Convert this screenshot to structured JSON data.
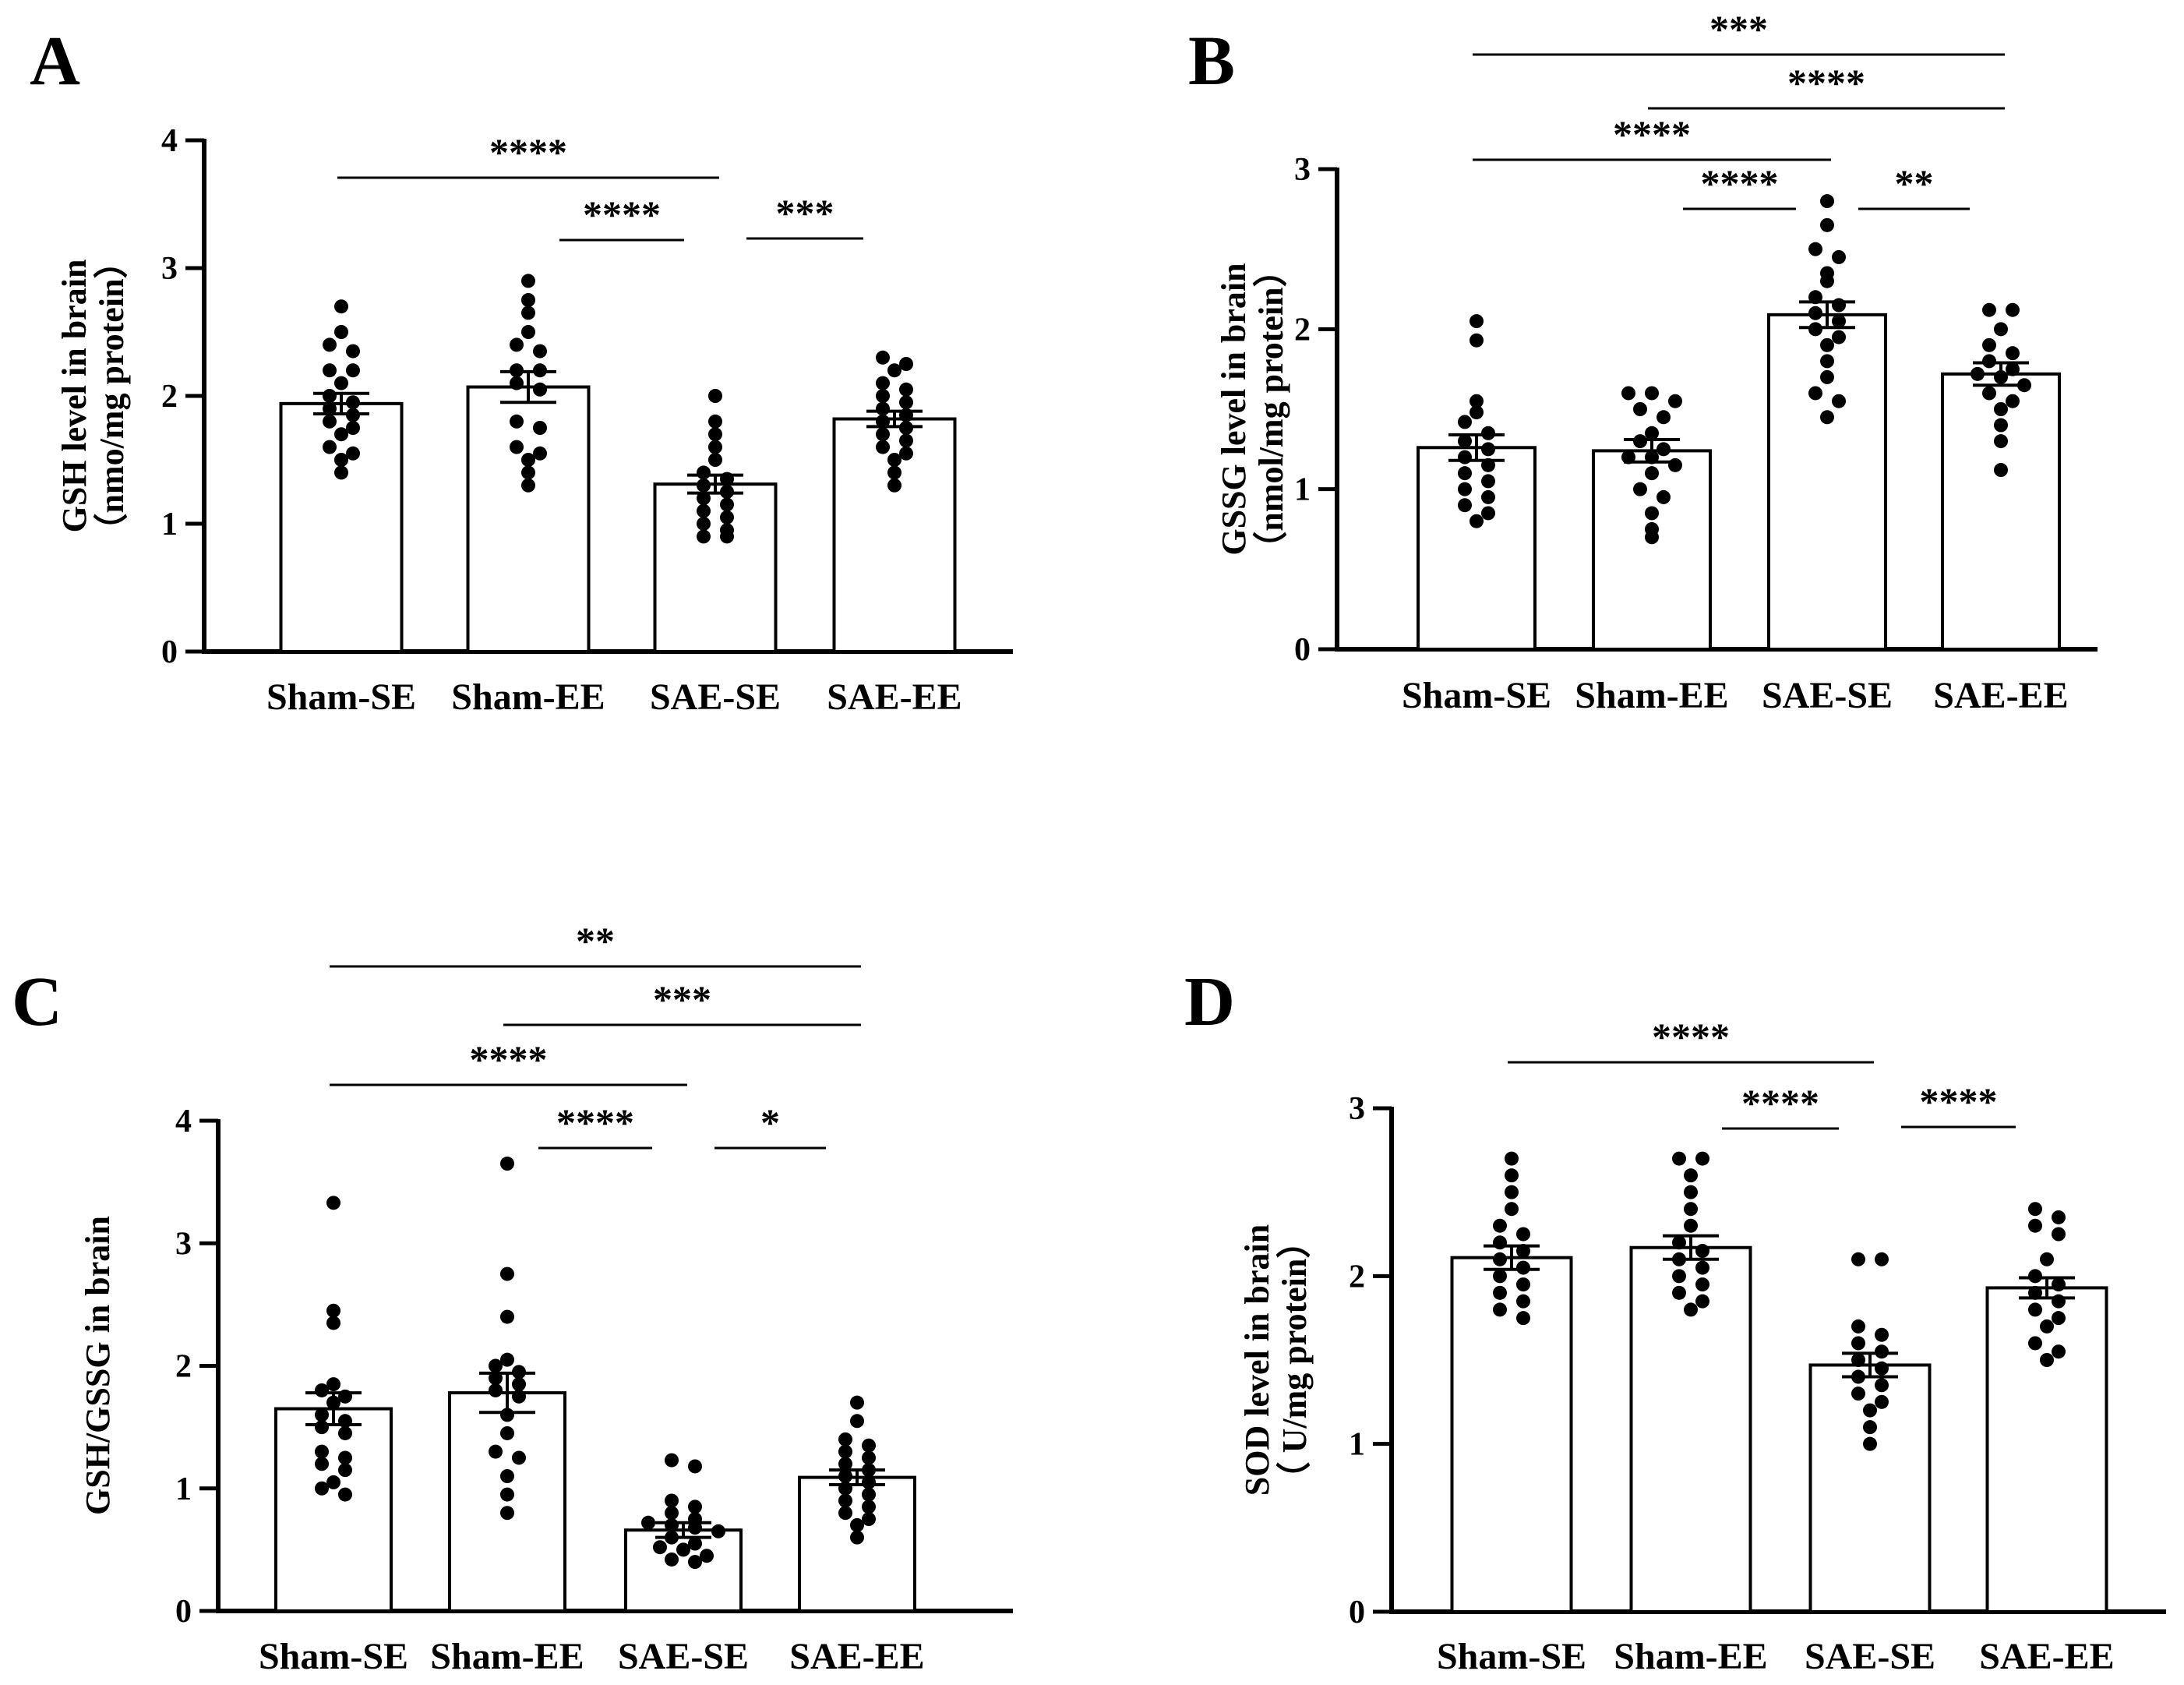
{
  "chart_data": [
    {
      "panel": "A",
      "type": "bar",
      "categories": [
        "Sham-SE",
        "Sham-EE",
        "SAE-SE",
        "SAE-EE"
      ],
      "values": [
        1.94,
        2.07,
        1.31,
        1.82
      ],
      "sem": [
        0.08,
        0.12,
        0.07,
        0.06
      ],
      "points": [
        [
          2.7,
          2.5,
          2.4,
          2.35,
          2.2,
          2.2,
          2.1,
          2.0,
          1.95,
          1.9,
          1.85,
          1.8,
          1.75,
          1.7,
          1.6,
          1.55,
          1.5,
          1.4
        ],
        [
          2.9,
          2.75,
          2.65,
          2.5,
          2.4,
          2.35,
          2.2,
          2.2,
          2.1,
          2.05,
          1.8,
          1.75,
          1.6,
          1.55,
          1.5,
          1.4,
          1.3
        ],
        [
          2.0,
          1.8,
          1.7,
          1.6,
          1.5,
          1.4,
          1.35,
          1.3,
          1.25,
          1.2,
          1.15,
          1.1,
          1.05,
          1.0,
          0.95,
          0.9,
          0.9
        ],
        [
          2.3,
          2.25,
          2.2,
          2.1,
          2.05,
          2.0,
          1.95,
          1.9,
          1.85,
          1.8,
          1.75,
          1.7,
          1.65,
          1.6,
          1.55,
          1.5,
          1.4,
          1.3
        ]
      ],
      "ylabel": [
        "GSH level in brain",
        "（nmo/mg protein）"
      ],
      "ylim": [
        0,
        4
      ],
      "yticks": [
        "0",
        "1",
        "2",
        "3",
        "4"
      ],
      "significance": [
        {
          "from": 0,
          "to": 2,
          "label": "****"
        },
        {
          "from": 1,
          "to": 2,
          "label": "****"
        },
        {
          "from": 2,
          "to": 3,
          "label": "***"
        }
      ]
    },
    {
      "panel": "B",
      "type": "bar",
      "categories": [
        "Sham-SE",
        "Sham-EE",
        "SAE-SE",
        "SAE-EE"
      ],
      "values": [
        1.26,
        1.24,
        2.09,
        1.72
      ],
      "sem": [
        0.08,
        0.07,
        0.08,
        0.07
      ],
      "points": [
        [
          2.05,
          1.93,
          1.55,
          1.48,
          1.42,
          1.35,
          1.3,
          1.25,
          1.2,
          1.15,
          1.1,
          1.05,
          1.0,
          0.95,
          0.9,
          0.85,
          0.8
        ],
        [
          1.6,
          1.6,
          1.55,
          1.5,
          1.45,
          1.35,
          1.3,
          1.25,
          1.2,
          1.2,
          1.15,
          1.1,
          1.0,
          0.95,
          0.85,
          0.75,
          0.7
        ],
        [
          2.8,
          2.65,
          2.5,
          2.45,
          2.35,
          2.3,
          2.2,
          2.15,
          2.1,
          2.05,
          2.0,
          1.95,
          1.9,
          1.8,
          1.7,
          1.6,
          1.55,
          1.45
        ],
        [
          2.12,
          2.12,
          2.0,
          1.9,
          1.85,
          1.8,
          1.75,
          1.72,
          1.7,
          1.65,
          1.6,
          1.55,
          1.5,
          1.4,
          1.3,
          1.12
        ]
      ],
      "ylabel": [
        "GSSG level in brain",
        "（nmol/mg protein）"
      ],
      "ylim": [
        0,
        3
      ],
      "yticks": [
        "0",
        "1",
        "2",
        "3"
      ],
      "significance": [
        {
          "from": 0,
          "to": 3,
          "label": "***"
        },
        {
          "from": 1,
          "to": 3,
          "label": "****"
        },
        {
          "from": 0,
          "to": 2,
          "label": "****"
        },
        {
          "from": 1,
          "to": 2,
          "label": "****"
        },
        {
          "from": 2,
          "to": 3,
          "label": "**"
        }
      ]
    },
    {
      "panel": "C",
      "type": "bar",
      "categories": [
        "Sham-SE",
        "Sham-EE",
        "SAE-SE",
        "SAE-EE"
      ],
      "values": [
        1.65,
        1.78,
        0.66,
        1.09
      ],
      "sem": [
        0.13,
        0.16,
        0.06,
        0.06
      ],
      "points": [
        [
          3.33,
          2.45,
          2.35,
          1.85,
          1.8,
          1.75,
          1.7,
          1.6,
          1.55,
          1.5,
          1.45,
          1.3,
          1.25,
          1.2,
          1.15,
          1.05,
          1.0,
          0.95
        ],
        [
          3.65,
          2.75,
          2.4,
          2.05,
          2.0,
          1.95,
          1.9,
          1.85,
          1.8,
          1.75,
          1.6,
          1.45,
          1.3,
          1.25,
          1.1,
          0.95,
          0.8
        ],
        [
          1.23,
          1.18,
          0.9,
          0.85,
          0.8,
          0.75,
          0.72,
          0.7,
          0.68,
          0.65,
          0.6,
          0.55,
          0.52,
          0.5,
          0.45,
          0.42,
          0.4
        ],
        [
          1.7,
          1.55,
          1.4,
          1.35,
          1.3,
          1.25,
          1.2,
          1.15,
          1.1,
          1.05,
          1.0,
          0.95,
          0.9,
          0.85,
          0.8,
          0.75,
          0.7,
          0.6
        ]
      ],
      "ylabel": [
        "GSH/GSSG in brain"
      ],
      "ylim": [
        0,
        4
      ],
      "yticks": [
        "0",
        "1",
        "2",
        "3",
        "4"
      ],
      "significance": [
        {
          "from": 0,
          "to": 3,
          "label": "**"
        },
        {
          "from": 1,
          "to": 3,
          "label": "***"
        },
        {
          "from": 0,
          "to": 2,
          "label": "****"
        },
        {
          "from": 1,
          "to": 2,
          "label": "****"
        },
        {
          "from": 2,
          "to": 3,
          "label": "*"
        }
      ]
    },
    {
      "panel": "D",
      "type": "bar",
      "categories": [
        "Sham-SE",
        "Sham-EE",
        "SAE-SE",
        "SAE-EE"
      ],
      "values": [
        2.11,
        2.17,
        1.47,
        1.93
      ],
      "sem": [
        0.07,
        0.07,
        0.07,
        0.06
      ],
      "points": [
        [
          2.7,
          2.6,
          2.5,
          2.4,
          2.3,
          2.25,
          2.2,
          2.15,
          2.1,
          2.05,
          2.0,
          1.95,
          1.9,
          1.85,
          1.8,
          1.75
        ],
        [
          2.7,
          2.7,
          2.6,
          2.5,
          2.4,
          2.3,
          2.2,
          2.15,
          2.1,
          2.05,
          2.0,
          1.95,
          1.9,
          1.85,
          1.8
        ],
        [
          2.1,
          2.1,
          1.7,
          1.65,
          1.6,
          1.55,
          1.5,
          1.45,
          1.4,
          1.35,
          1.3,
          1.25,
          1.2,
          1.1,
          1.0
        ],
        [
          2.4,
          2.35,
          2.3,
          2.25,
          2.1,
          2.0,
          1.95,
          1.9,
          1.85,
          1.8,
          1.75,
          1.7,
          1.6,
          1.55,
          1.5
        ]
      ],
      "ylabel": [
        "SOD level in brain",
        "（ U/mg protein）"
      ],
      "ylim": [
        0,
        3
      ],
      "yticks": [
        "0",
        "1",
        "2",
        "3"
      ],
      "significance": [
        {
          "from": 0,
          "to": 2,
          "label": "****"
        },
        {
          "from": 1,
          "to": 2,
          "label": "****"
        },
        {
          "from": 2,
          "to": 3,
          "label": "****"
        }
      ]
    }
  ]
}
